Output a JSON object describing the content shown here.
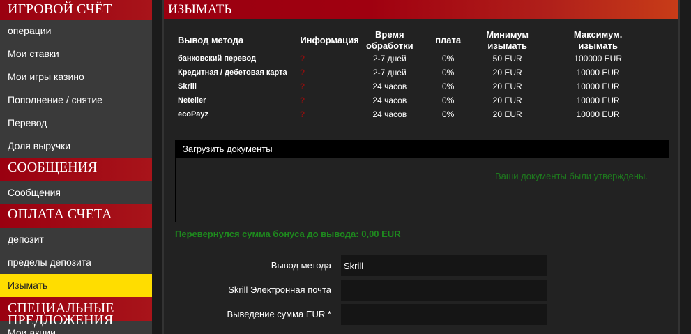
{
  "sidebar": {
    "h1": "ИГРОВОЙ СЧЁТ",
    "items1": [
      "операции",
      "Мои ставки",
      "Мои игры казино",
      "Пополнение / снятие",
      "Перевод",
      "Доля выручки"
    ],
    "h2": "СООБЩЕНИЯ",
    "items2": [
      "Сообщения"
    ],
    "h3": "ОПЛАТА СЧЕТА",
    "items3": [
      "депозит",
      "пределы депозита",
      "Изымать"
    ],
    "h4": "СПЕЦИАЛЬНЫЕ ПРЕДЛОЖЕНИЯ",
    "items4": [
      "Мои акции"
    ],
    "active": "Изымать"
  },
  "main": {
    "title": "ИЗЫМАТЬ",
    "table": {
      "headers": [
        "Вывод метода",
        "Информация",
        "Время обработки",
        "плата",
        "Минимум изымать",
        "Максимум. изымать"
      ],
      "rows": [
        [
          "банковский перевод",
          "?",
          "2-7 дней",
          "0%",
          "50 EUR",
          "100000 EUR"
        ],
        [
          "Кредитная / дебетовая карта",
          "?",
          "2-7 дней",
          "0%",
          "20 EUR",
          "10000 EUR"
        ],
        [
          "Skrill",
          "?",
          "24 часов",
          "0%",
          "20 EUR",
          "10000 EUR"
        ],
        [
          "Neteller",
          "?",
          "24 часов",
          "0%",
          "20 EUR",
          "10000 EUR"
        ],
        [
          "ecoPayz",
          "?",
          "24 часов",
          "0%",
          "20 EUR",
          "10000 EUR"
        ]
      ]
    },
    "docs": {
      "title": "Загрузить документы",
      "status": "Ваши документы были утверждены."
    },
    "bonus": "Перевернулся сумма бонуса до вывода: 0,00 EUR",
    "form": {
      "method_label": "Вывод метода",
      "method_value": "Skrill",
      "email_label": "Skrill Электронная почта",
      "email_value": "",
      "amount_label": "Выведение сумма EUR *",
      "amount_value": ""
    }
  },
  "colors": {
    "accent": "#9a0010",
    "active": "#ffdd00",
    "success": "#1e8a1e",
    "info_icon": "#8b0f0f"
  }
}
